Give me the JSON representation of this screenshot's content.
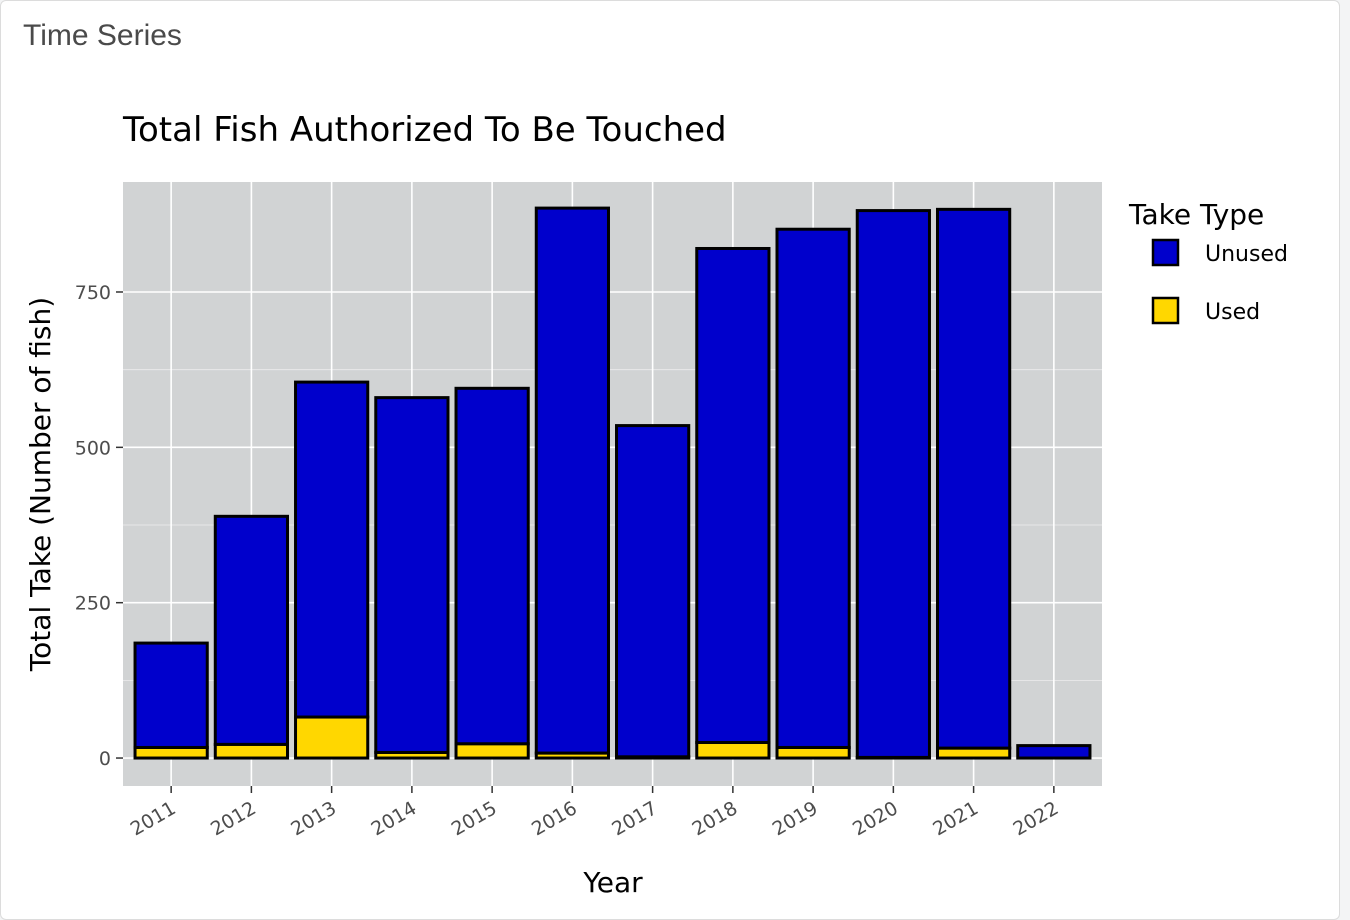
{
  "card": {
    "header": "Time Series"
  },
  "chart_data": {
    "type": "bar",
    "stacked": true,
    "title": "Total Fish Authorized To Be Touched",
    "xlabel": "Year",
    "ylabel": "Total Take (Number of fish)",
    "ylim": [
      -45,
      927
    ],
    "yticks": [
      0,
      250,
      500,
      750
    ],
    "grid": true,
    "legend": {
      "title": "Take Type",
      "placement": "right"
    },
    "categories": [
      "2011",
      "2012",
      "2013",
      "2014",
      "2015",
      "2016",
      "2017",
      "2018",
      "2019",
      "2020",
      "2021",
      "2022"
    ],
    "series": [
      {
        "name": "Unused",
        "color": "#0000cc",
        "values": [
          168,
          367,
          539,
          571,
          572,
          877,
          533,
          795,
          834,
          880,
          867,
          20
        ]
      },
      {
        "name": "Used",
        "color": "#ffd700",
        "values": [
          17,
          22,
          66,
          9,
          23,
          8,
          2,
          25,
          17,
          1,
          16,
          0
        ]
      }
    ],
    "stack_order": [
      "Used",
      "Unused"
    ]
  }
}
